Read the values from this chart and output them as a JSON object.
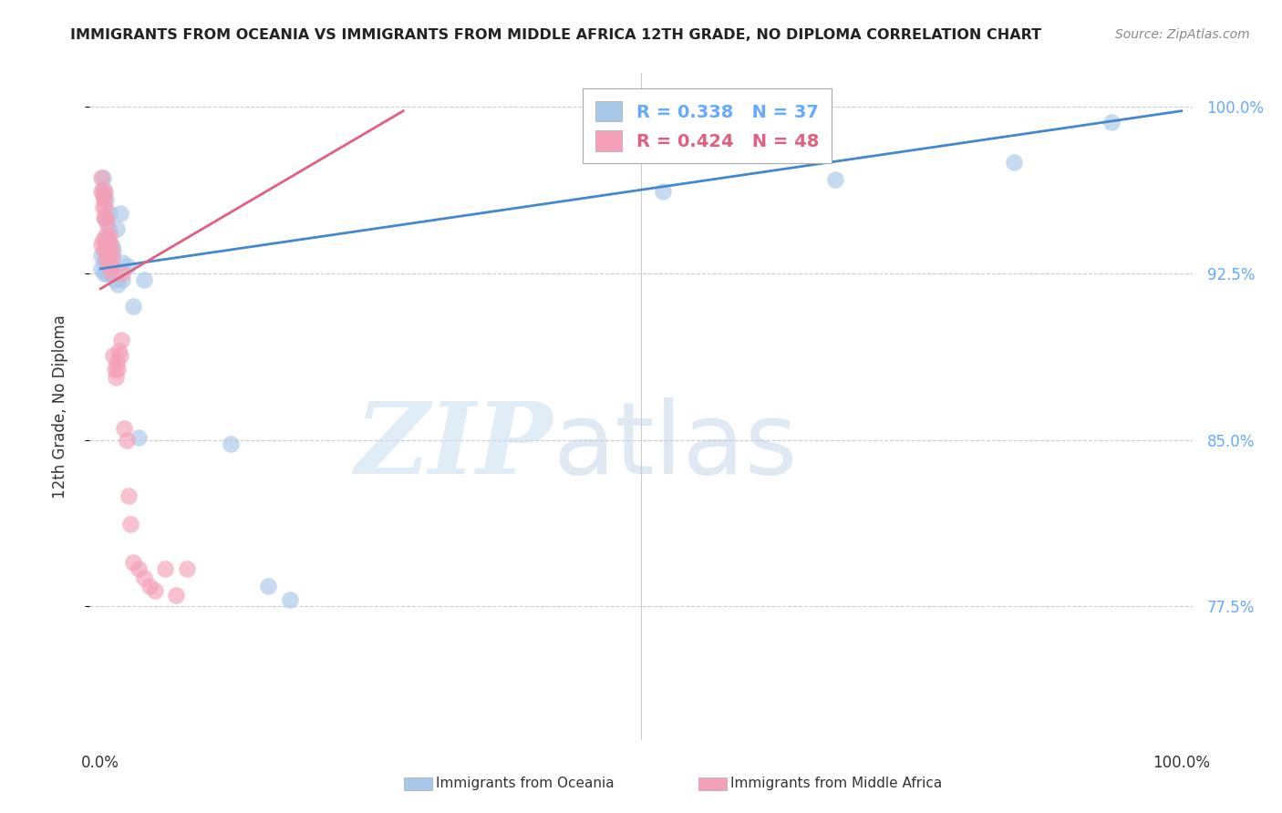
{
  "title": "IMMIGRANTS FROM OCEANIA VS IMMIGRANTS FROM MIDDLE AFRICA 12TH GRADE, NO DIPLOMA CORRELATION CHART",
  "source": "Source: ZipAtlas.com",
  "ylabel": "12th Grade, No Diploma",
  "series1_label": "Immigrants from Oceania",
  "series2_label": "Immigrants from Middle Africa",
  "R1": 0.338,
  "N1": 37,
  "R2": 0.424,
  "N2": 48,
  "color1": "#a8c8e8",
  "color2": "#f4a0b8",
  "line_color1": "#4488cc",
  "line_color2": "#e06080",
  "tick_color": "#66aaff",
  "xlim": [
    -0.01,
    1.01
  ],
  "ylim": [
    0.715,
    1.015
  ],
  "yticks": [
    0.775,
    0.85,
    0.925,
    1.0
  ],
  "ytick_labels": [
    "77.5%",
    "85.0%",
    "92.5%",
    "100.0%"
  ],
  "xticks": [
    0.0,
    0.2,
    0.4,
    0.6,
    0.8,
    1.0
  ],
  "xtick_labels": [
    "0.0%",
    "",
    "",
    "",
    "",
    "100.0%"
  ],
  "background_color": "#ffffff",
  "oceania_x": [
    0.001,
    0.001,
    0.002,
    0.002,
    0.003,
    0.003,
    0.003,
    0.004,
    0.004,
    0.005,
    0.005,
    0.006,
    0.006,
    0.007,
    0.008,
    0.009,
    0.009,
    0.01,
    0.011,
    0.012,
    0.013,
    0.015,
    0.016,
    0.018,
    0.02,
    0.02,
    0.025,
    0.03,
    0.035,
    0.04,
    0.12,
    0.155,
    0.175,
    0.52,
    0.68,
    0.845,
    0.935
  ],
  "oceania_y": [
    0.933,
    0.927,
    0.968,
    0.963,
    0.96,
    0.93,
    0.925,
    0.95,
    0.94,
    0.958,
    0.935,
    0.938,
    0.925,
    0.945,
    0.952,
    0.93,
    0.925,
    0.928,
    0.937,
    0.935,
    0.922,
    0.945,
    0.92,
    0.952,
    0.93,
    0.922,
    0.928,
    0.91,
    0.851,
    0.922,
    0.848,
    0.784,
    0.778,
    0.962,
    0.967,
    0.975,
    0.993
  ],
  "africa_x": [
    0.001,
    0.001,
    0.001,
    0.002,
    0.002,
    0.002,
    0.003,
    0.003,
    0.003,
    0.004,
    0.004,
    0.004,
    0.005,
    0.005,
    0.005,
    0.006,
    0.006,
    0.007,
    0.007,
    0.008,
    0.008,
    0.009,
    0.009,
    0.01,
    0.01,
    0.011,
    0.011,
    0.012,
    0.013,
    0.014,
    0.015,
    0.016,
    0.017,
    0.018,
    0.019,
    0.02,
    0.022,
    0.024,
    0.026,
    0.028,
    0.03,
    0.035,
    0.04,
    0.045,
    0.05,
    0.06,
    0.07,
    0.08
  ],
  "africa_y": [
    0.968,
    0.962,
    0.938,
    0.96,
    0.955,
    0.94,
    0.958,
    0.95,
    0.935,
    0.962,
    0.955,
    0.938,
    0.95,
    0.942,
    0.932,
    0.948,
    0.935,
    0.94,
    0.928,
    0.942,
    0.93,
    0.938,
    0.928,
    0.935,
    0.928,
    0.932,
    0.925,
    0.888,
    0.882,
    0.878,
    0.885,
    0.882,
    0.89,
    0.888,
    0.895,
    0.925,
    0.855,
    0.85,
    0.825,
    0.812,
    0.795,
    0.792,
    0.788,
    0.784,
    0.782,
    0.792,
    0.78,
    0.792
  ],
  "line1_x": [
    0.0,
    1.0
  ],
  "line1_y_start": 0.927,
  "line1_y_end": 0.998,
  "line2_x": [
    0.0,
    0.28
  ],
  "line2_y_start": 0.918,
  "line2_y_end": 0.998
}
